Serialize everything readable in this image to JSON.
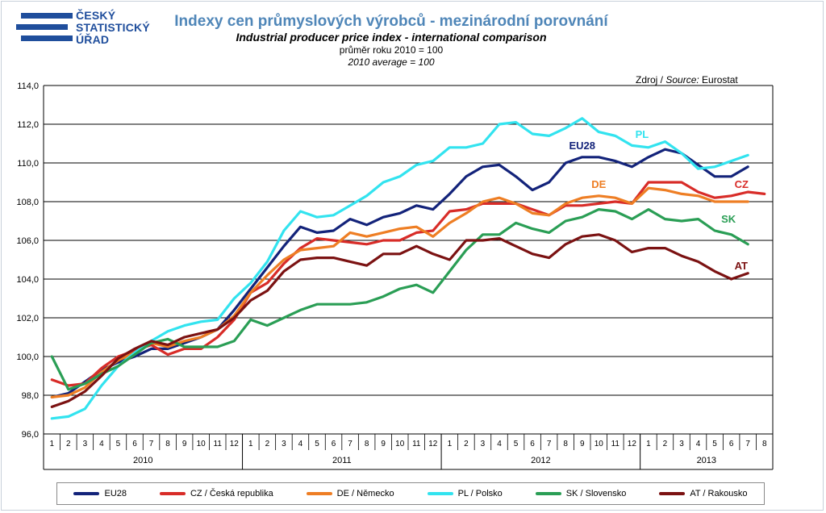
{
  "logo": {
    "lines": [
      "ČESKÝ",
      "STATISTICKÝ",
      "ÚŘAD"
    ]
  },
  "title_cz": "Indexy cen průmyslových výrobců - mezinárodní porovnání",
  "title_en": "Industrial producer price index - international comparison",
  "subtitle_cz": "průměr roku 2010 = 100",
  "subtitle_en": "2010 average = 100",
  "source": {
    "prefix": "Zdroj / ",
    "italic": "Source:",
    "value": " Eurostat"
  },
  "chart_data": {
    "type": "line",
    "x_month_labels": [
      "1",
      "2",
      "3",
      "4",
      "5",
      "6",
      "7",
      "8",
      "9",
      "10",
      "11",
      "12",
      "1",
      "2",
      "3",
      "4",
      "5",
      "6",
      "7",
      "8",
      "9",
      "10",
      "11",
      "12",
      "1",
      "2",
      "3",
      "4",
      "5",
      "6",
      "7",
      "8",
      "9",
      "10",
      "11",
      "12",
      "1",
      "2",
      "3",
      "4",
      "5",
      "6",
      "7",
      "8"
    ],
    "x_year_labels": [
      "2010",
      "2011",
      "2012",
      "2013"
    ],
    "ylim": [
      96.0,
      114.0
    ],
    "y_ticks": [
      "96,0",
      "98,0",
      "100,0",
      "102,0",
      "104,0",
      "106,0",
      "108,0",
      "110,0",
      "112,0",
      "114,0"
    ],
    "grid": true,
    "series": [
      {
        "name": "EU28",
        "label": "EU28",
        "color": "#13237a",
        "values": [
          97.9,
          98.1,
          98.7,
          99.3,
          99.7,
          100.0,
          100.4,
          100.4,
          100.7,
          101.0,
          101.4,
          102.4,
          103.5,
          104.6,
          105.7,
          106.7,
          106.4,
          106.5,
          107.1,
          106.8,
          107.2,
          107.4,
          107.8,
          107.6,
          108.4,
          109.3,
          109.8,
          109.9,
          109.3,
          108.6,
          109.0,
          110.0,
          110.3,
          110.3,
          110.1,
          109.8,
          110.3,
          110.7,
          110.5,
          109.9,
          109.3,
          109.3,
          109.8,
          null
        ]
      },
      {
        "name": "CZ / Česká republika",
        "label": "CZ",
        "color": "#d82c28",
        "values": [
          98.8,
          98.5,
          98.6,
          99.4,
          100.0,
          100.3,
          100.6,
          100.1,
          100.4,
          100.4,
          101.0,
          101.9,
          103.3,
          103.8,
          104.8,
          105.6,
          106.1,
          106.0,
          105.9,
          105.8,
          106.0,
          106.0,
          106.4,
          106.5,
          107.5,
          107.6,
          107.9,
          107.9,
          107.9,
          107.6,
          107.3,
          107.8,
          107.8,
          107.9,
          108.0,
          107.9,
          109.0,
          109.0,
          109.0,
          108.5,
          108.2,
          108.3,
          108.5,
          108.4
        ]
      },
      {
        "name": "DE / Německo",
        "label": "DE",
        "color": "#ee7e24",
        "values": [
          97.9,
          98.0,
          98.4,
          99.2,
          99.8,
          100.2,
          100.7,
          100.5,
          100.8,
          101.0,
          101.4,
          102.1,
          103.3,
          104.2,
          105.0,
          105.5,
          105.6,
          105.7,
          106.4,
          106.2,
          106.4,
          106.6,
          106.7,
          106.2,
          106.9,
          107.4,
          108.0,
          108.2,
          107.9,
          107.4,
          107.3,
          107.9,
          108.2,
          108.3,
          108.2,
          107.9,
          108.7,
          108.6,
          108.4,
          108.3,
          108.0,
          108.0,
          108.0,
          null
        ]
      },
      {
        "name": "PL / Polsko",
        "label": "PL",
        "color": "#32e3ef",
        "values": [
          96.8,
          96.9,
          97.3,
          98.5,
          99.5,
          100.2,
          100.8,
          101.3,
          101.6,
          101.8,
          101.9,
          103.0,
          103.8,
          104.9,
          106.5,
          107.5,
          107.2,
          107.3,
          107.8,
          108.3,
          109.0,
          109.3,
          109.9,
          110.1,
          110.8,
          110.8,
          111.0,
          112.0,
          112.1,
          111.5,
          111.4,
          111.8,
          112.3,
          111.6,
          111.4,
          110.9,
          110.8,
          111.1,
          110.5,
          109.7,
          109.8,
          110.1,
          110.4,
          null
        ]
      },
      {
        "name": "SK / Slovensko",
        "label": "SK",
        "color": "#2a9e55",
        "values": [
          100.0,
          98.3,
          98.6,
          99.1,
          99.5,
          100.1,
          100.7,
          100.9,
          100.5,
          100.5,
          100.5,
          100.8,
          101.9,
          101.6,
          102.0,
          102.4,
          102.7,
          102.7,
          102.7,
          102.8,
          103.1,
          103.5,
          103.7,
          103.3,
          104.4,
          105.5,
          106.3,
          106.3,
          106.9,
          106.6,
          106.4,
          107.0,
          107.2,
          107.6,
          107.5,
          107.1,
          107.6,
          107.1,
          107.0,
          107.1,
          106.5,
          106.3,
          105.8,
          null
        ]
      },
      {
        "name": "AT / Rakousko",
        "label": "AT",
        "color": "#7b1212",
        "values": [
          97.4,
          97.7,
          98.2,
          99.0,
          99.9,
          100.4,
          100.8,
          100.6,
          101.0,
          101.2,
          101.4,
          102.0,
          102.9,
          103.4,
          104.4,
          105.0,
          105.1,
          105.1,
          104.9,
          104.7,
          105.3,
          105.3,
          105.7,
          105.3,
          105.0,
          106.0,
          106.0,
          106.1,
          105.7,
          105.3,
          105.1,
          105.8,
          106.2,
          106.3,
          106.0,
          105.4,
          105.6,
          105.6,
          105.2,
          104.9,
          104.4,
          104.0,
          104.3,
          null
        ]
      }
    ]
  }
}
